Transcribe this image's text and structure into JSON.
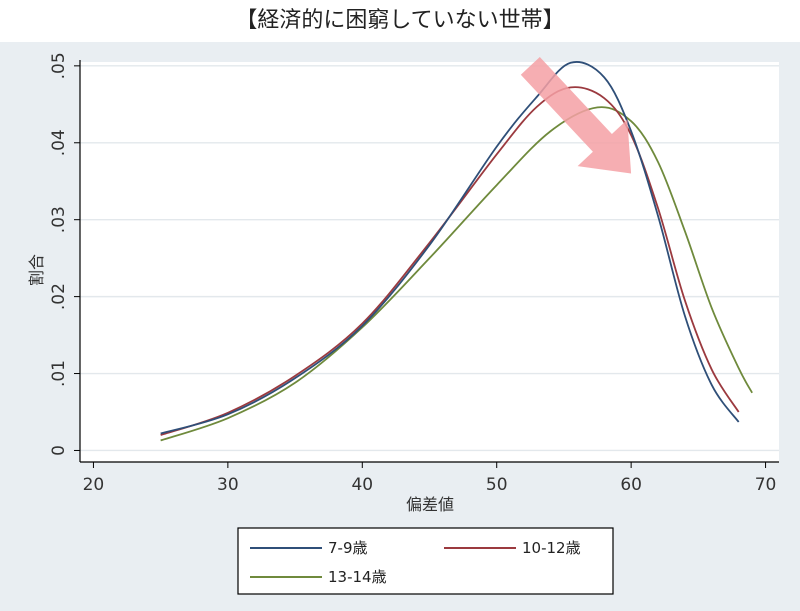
{
  "chart_data": {
    "type": "line",
    "title": "【経済的に困窮していない世帯】",
    "xlabel": "偏差値",
    "ylabel": "割合",
    "xlim": [
      19,
      71
    ],
    "ylim": [
      -0.0015,
      0.0505
    ],
    "xticks": [
      "20",
      "30",
      "40",
      "50",
      "60",
      "70"
    ],
    "xtick_values": [
      20,
      30,
      40,
      50,
      60,
      70
    ],
    "yticks": [
      "0",
      ".01",
      ".02",
      ".03",
      ".04",
      ".05"
    ],
    "ytick_values": [
      0,
      0.01,
      0.02,
      0.03,
      0.04,
      0.05
    ],
    "grid": true,
    "legend_position": "bottom",
    "series": [
      {
        "name": "7-9歳",
        "color": "#2f4f78",
        "x": [
          25,
          30,
          35,
          40,
          45,
          50,
          53,
          55.5,
          58,
          60,
          62,
          64,
          66,
          68
        ],
        "y": [
          0.0022,
          0.0047,
          0.0094,
          0.0162,
          0.0267,
          0.0395,
          0.046,
          0.0504,
          0.0485,
          0.0415,
          0.0305,
          0.0175,
          0.0085,
          0.0037
        ]
      },
      {
        "name": "10-12歳",
        "color": "#9b3a3f",
        "x": [
          25,
          30,
          35,
          40,
          45,
          50,
          53,
          55.5,
          58,
          60,
          62,
          64,
          66,
          68
        ],
        "y": [
          0.002,
          0.0049,
          0.0097,
          0.0165,
          0.027,
          0.0385,
          0.0447,
          0.0472,
          0.0458,
          0.041,
          0.0315,
          0.0195,
          0.0105,
          0.005
        ]
      },
      {
        "name": "13-14歳",
        "color": "#6f8a3c",
        "x": [
          25,
          30,
          35,
          40,
          45,
          50,
          54,
          57.5,
          60,
          62,
          64,
          66,
          68,
          69
        ],
        "y": [
          0.0013,
          0.0042,
          0.0088,
          0.016,
          0.025,
          0.0345,
          0.0415,
          0.0446,
          0.0428,
          0.0375,
          0.0285,
          0.0185,
          0.0107,
          0.0075
        ]
      }
    ],
    "annotation": {
      "type": "arrow",
      "color": "#f4a0a4",
      "from": [
        52.5,
        0.05
      ],
      "to": [
        60,
        0.036
      ]
    }
  }
}
